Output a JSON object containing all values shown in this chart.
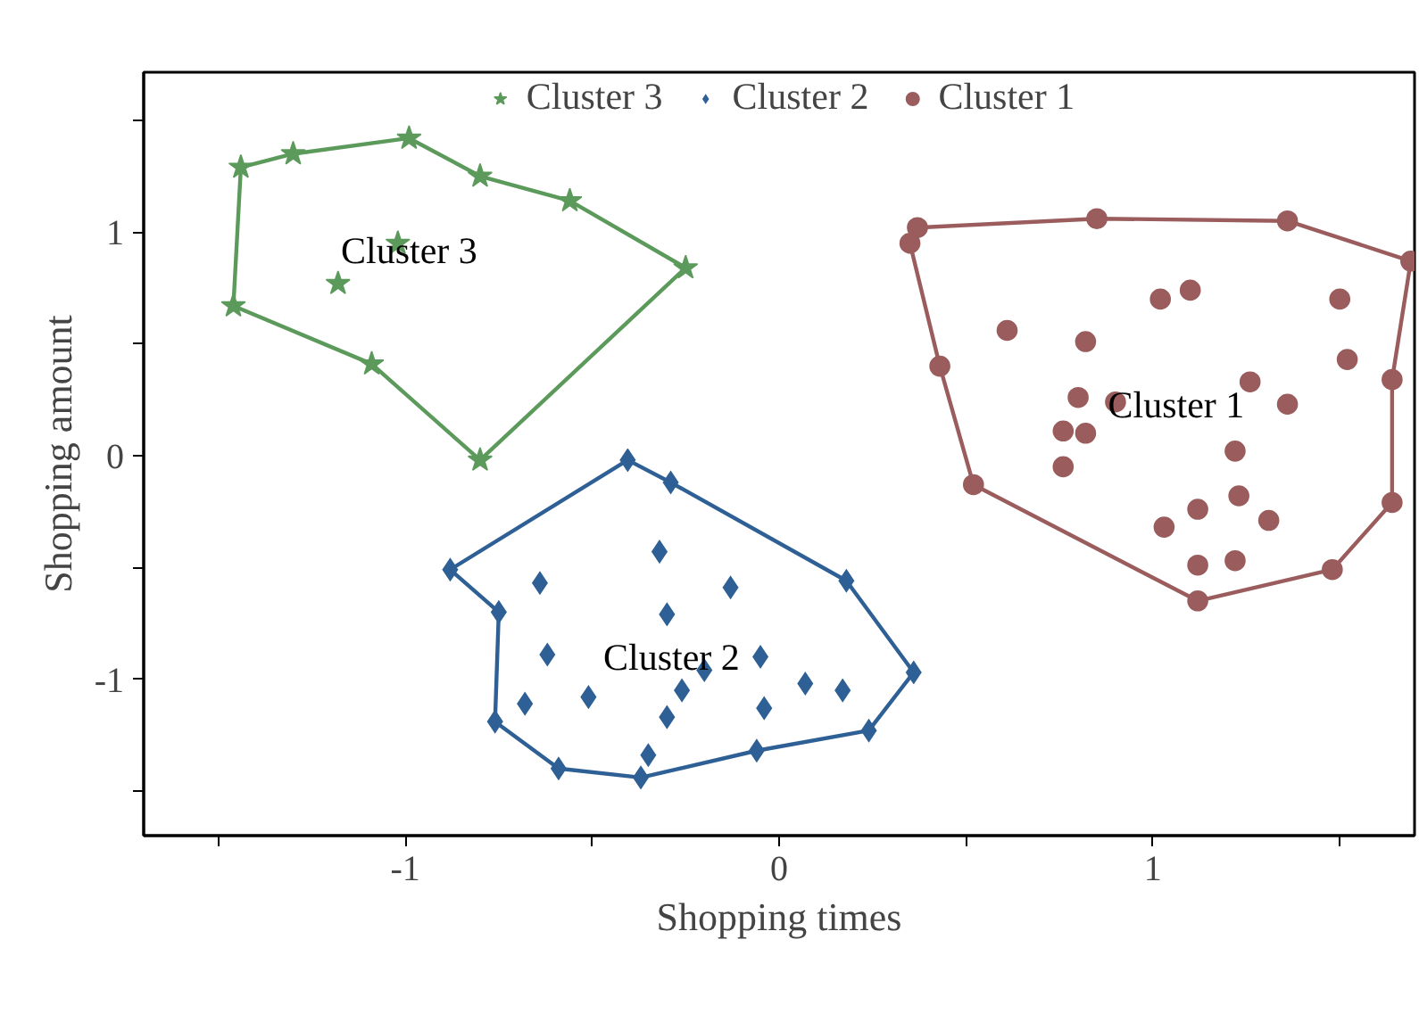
{
  "chart_data": {
    "type": "scatter",
    "xlabel": "Shopping times",
    "ylabel": "Shopping amount",
    "xlim": [
      -1.7,
      1.7
    ],
    "ylim": [
      -1.7,
      1.715
    ],
    "xticks": [
      {
        "value": -1.5,
        "label": null
      },
      -1,
      {
        "value": -0.5,
        "label": null
      },
      0,
      {
        "value": 0.5,
        "label": null
      },
      1,
      {
        "value": 1.5,
        "label": null
      }
    ],
    "yticks": [
      {
        "value": -1.5,
        "label": null
      },
      -1,
      {
        "value": -0.5,
        "label": null
      },
      0,
      {
        "value": 0.5,
        "label": null
      },
      1,
      {
        "value": 1.5,
        "label": null
      }
    ],
    "grid": false,
    "legend": "top",
    "series": [
      {
        "name": "Cluster 3",
        "marker": "star",
        "color": "#5c9a5c",
        "x": [
          -1.44,
          -1.3,
          -0.99,
          -0.8,
          -0.56,
          -0.25,
          -0.8,
          -1.09,
          -1.46,
          -1.02,
          -1.18
        ],
        "values": [
          1.29,
          1.35,
          1.42,
          1.25,
          1.14,
          0.84,
          -0.02,
          0.41,
          0.67,
          0.95,
          0.77
        ]
      },
      {
        "name": "Cluster 2",
        "marker": "diamond",
        "color": "#2e6096",
        "x": [
          -0.405,
          -0.29,
          0.18,
          0.36,
          0.24,
          -0.06,
          -0.37,
          -0.59,
          -0.76,
          -0.75,
          -0.88,
          -0.32,
          -0.64,
          -0.13,
          -0.3,
          -0.62,
          -0.05,
          -0.2,
          -0.26,
          -0.51,
          -0.68,
          0.07,
          0.17,
          -0.3,
          -0.04,
          -0.35
        ],
        "values": [
          -0.02,
          -0.12,
          -0.56,
          -0.97,
          -1.23,
          -1.32,
          -1.44,
          -1.4,
          -1.19,
          -0.7,
          -0.51,
          -0.43,
          -0.57,
          -0.59,
          -0.71,
          -0.89,
          -0.9,
          -0.96,
          -1.05,
          -1.08,
          -1.11,
          -1.02,
          -1.05,
          -1.17,
          -1.13,
          -1.34
        ]
      },
      {
        "name": "Cluster 1",
        "marker": "circle",
        "color": "#9a5c5c",
        "x": [
          0.37,
          0.85,
          1.36,
          1.69,
          1.64,
          1.64,
          1.48,
          1.12,
          0.52,
          0.43,
          0.35,
          1.02,
          1.1,
          1.5,
          0.61,
          0.82,
          1.52,
          1.26,
          0.8,
          0.9,
          1.36,
          0.76,
          0.82,
          1.22,
          0.76,
          1.23,
          1.12,
          1.31,
          1.03,
          1.12,
          1.22
        ],
        "values": [
          1.02,
          1.06,
          1.05,
          0.87,
          0.34,
          -0.21,
          -0.51,
          -0.65,
          -0.13,
          0.4,
          0.95,
          0.7,
          0.74,
          0.7,
          0.56,
          0.51,
          0.43,
          0.33,
          0.26,
          0.24,
          0.23,
          0.11,
          0.1,
          0.02,
          -0.05,
          -0.18,
          -0.24,
          -0.29,
          -0.32,
          -0.49,
          -0.47
        ]
      },
      {
        "type": "line",
        "marker": "none",
        "color": "#5c9a5c",
        "x": [
          -1.46,
          -1.44,
          -1.3,
          -0.99,
          -0.8,
          -0.56,
          -0.25
        ],
        "values": [
          0.67,
          1.29,
          1.35,
          1.42,
          1.25,
          1.14,
          0.84
        ]
      },
      {
        "type": "line",
        "marker": "none",
        "color": "#5c9a5c",
        "x": [
          -1.46,
          -1.09,
          -0.8,
          -0.25
        ],
        "values": [
          0.67,
          0.41,
          -0.02,
          0.84
        ]
      },
      {
        "type": "line",
        "marker": "none",
        "color": "#2e6096",
        "x": [
          -0.88,
          -0.405,
          -0.29,
          0.18,
          0.36
        ],
        "values": [
          -0.51,
          -0.02,
          -0.12,
          -0.56,
          -0.97
        ]
      },
      {
        "type": "line",
        "marker": "none",
        "color": "#2e6096",
        "x": [
          -0.88,
          -0.75,
          -0.76,
          -0.59,
          -0.37,
          -0.06,
          0.24,
          0.36
        ],
        "values": [
          -0.51,
          -0.7,
          -1.19,
          -1.4,
          -1.44,
          -1.32,
          -1.23,
          -0.97
        ]
      },
      {
        "type": "line",
        "marker": "none",
        "color": "#9a5c5c",
        "x": [
          0.35,
          0.37,
          0.85,
          1.36,
          1.69
        ],
        "values": [
          0.95,
          1.02,
          1.06,
          1.05,
          0.87
        ]
      },
      {
        "type": "line",
        "marker": "none",
        "color": "#9a5c5c",
        "x": [
          0.35,
          0.43,
          0.52,
          1.12,
          1.48,
          1.64,
          1.64,
          1.69
        ],
        "values": [
          0.95,
          0.4,
          -0.13,
          -0.65,
          -0.51,
          -0.21,
          0.34,
          0.87
        ]
      }
    ],
    "annotations": [
      "Cluster 3",
      "Cluster 2",
      "Cluster 1"
    ]
  }
}
